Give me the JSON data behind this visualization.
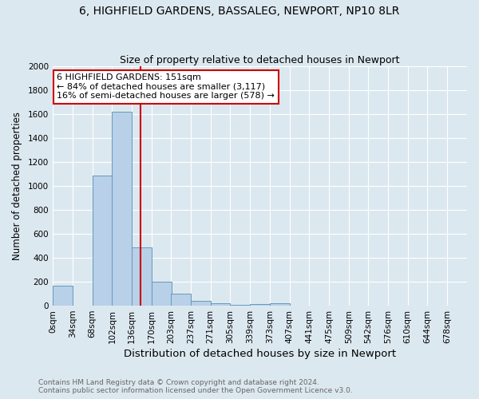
{
  "title": "6, HIGHFIELD GARDENS, BASSALEG, NEWPORT, NP10 8LR",
  "subtitle": "Size of property relative to detached houses in Newport",
  "xlabel": "Distribution of detached houses by size in Newport",
  "ylabel": "Number of detached properties",
  "bin_labels": [
    "0sqm",
    "34sqm",
    "68sqm",
    "102sqm",
    "136sqm",
    "170sqm",
    "203sqm",
    "237sqm",
    "271sqm",
    "305sqm",
    "339sqm",
    "373sqm",
    "407sqm",
    "441sqm",
    "475sqm",
    "509sqm",
    "542sqm",
    "576sqm",
    "610sqm",
    "644sqm",
    "678sqm"
  ],
  "bin_left_edges": [
    0,
    34,
    68,
    102,
    136,
    170,
    203,
    237,
    271,
    305,
    339,
    373,
    407,
    441,
    475,
    509,
    542,
    576,
    610,
    644,
    678
  ],
  "bin_width": 34,
  "bar_values": [
    170,
    0,
    1085,
    1620,
    485,
    200,
    100,
    40,
    20,
    5,
    15,
    20,
    0,
    0,
    0,
    0,
    0,
    0,
    0,
    0,
    0
  ],
  "bar_color": "#b8d0e8",
  "bar_edge_color": "#6699bb",
  "vline_x": 151,
  "vline_color": "#cc0000",
  "annotation_text": "6 HIGHFIELD GARDENS: 151sqm\n← 84% of detached houses are smaller (3,117)\n16% of semi-detached houses are larger (578) →",
  "annotation_box_color": "white",
  "annotation_box_edge_color": "#cc0000",
  "ylim": [
    0,
    2000
  ],
  "yticks": [
    0,
    200,
    400,
    600,
    800,
    1000,
    1200,
    1400,
    1600,
    1800,
    2000
  ],
  "background_color": "#dce8f0",
  "plot_background_color": "#dce8f0",
  "grid_color": "#ffffff",
  "footer_text": "Contains HM Land Registry data © Crown copyright and database right 2024.\nContains public sector information licensed under the Open Government Licence v3.0.",
  "title_fontsize": 10,
  "subtitle_fontsize": 9,
  "xlabel_fontsize": 9.5,
  "ylabel_fontsize": 8.5,
  "tick_fontsize": 7.5,
  "annotation_fontsize": 8,
  "footer_fontsize": 6.5
}
